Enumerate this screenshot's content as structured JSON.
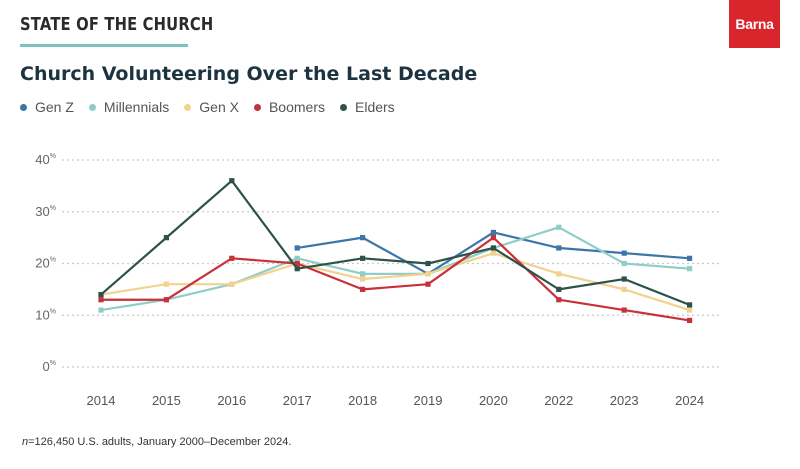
{
  "header": {
    "brand": "STATE OF THE CHURCH",
    "logo": "Barna",
    "logo_color": "#d8262c",
    "rule_color": "#7cc1bd"
  },
  "footnote": {
    "n_label": "n",
    "text": "=126,450 U.S. adults, January 2000–December 2024."
  },
  "chart_data": {
    "type": "line",
    "title": "Church Volunteering Over the Last Decade",
    "xlabel": "",
    "ylabel": "",
    "categories": [
      "2014",
      "2015",
      "2016",
      "2017",
      "2018",
      "2019",
      "2020",
      "2022",
      "2023",
      "2024"
    ],
    "ylim": [
      0,
      40
    ],
    "yticks": [
      {
        "value": 0,
        "label": "0",
        "suffix": "%"
      },
      {
        "value": 10,
        "label": "10",
        "suffix": "%"
      },
      {
        "value": 20,
        "label": "20",
        "suffix": "%"
      },
      {
        "value": 30,
        "label": "30",
        "suffix": "%"
      },
      {
        "value": 40,
        "label": "40",
        "suffix": "%"
      }
    ],
    "grid": true,
    "legend_position": "top-left",
    "series": [
      {
        "name": "Gen Z",
        "color": "#3b76a8",
        "values": [
          null,
          null,
          null,
          23,
          25,
          18,
          26,
          23,
          22,
          21
        ]
      },
      {
        "name": "Millennials",
        "color": "#8fcdc6",
        "values": [
          11,
          13,
          16,
          21,
          18,
          18,
          23,
          27,
          20,
          19
        ]
      },
      {
        "name": "Gen X",
        "color": "#f2d28f",
        "values": [
          14,
          16,
          16,
          20,
          17,
          18,
          22,
          18,
          15,
          11
        ]
      },
      {
        "name": "Boomers",
        "color": "#c8313a",
        "values": [
          13,
          13,
          21,
          20,
          15,
          16,
          25,
          13,
          11,
          9
        ]
      },
      {
        "name": "Elders",
        "color": "#2e5248",
        "values": [
          14,
          25,
          36,
          19,
          21,
          20,
          23,
          15,
          17,
          12
        ]
      }
    ]
  }
}
